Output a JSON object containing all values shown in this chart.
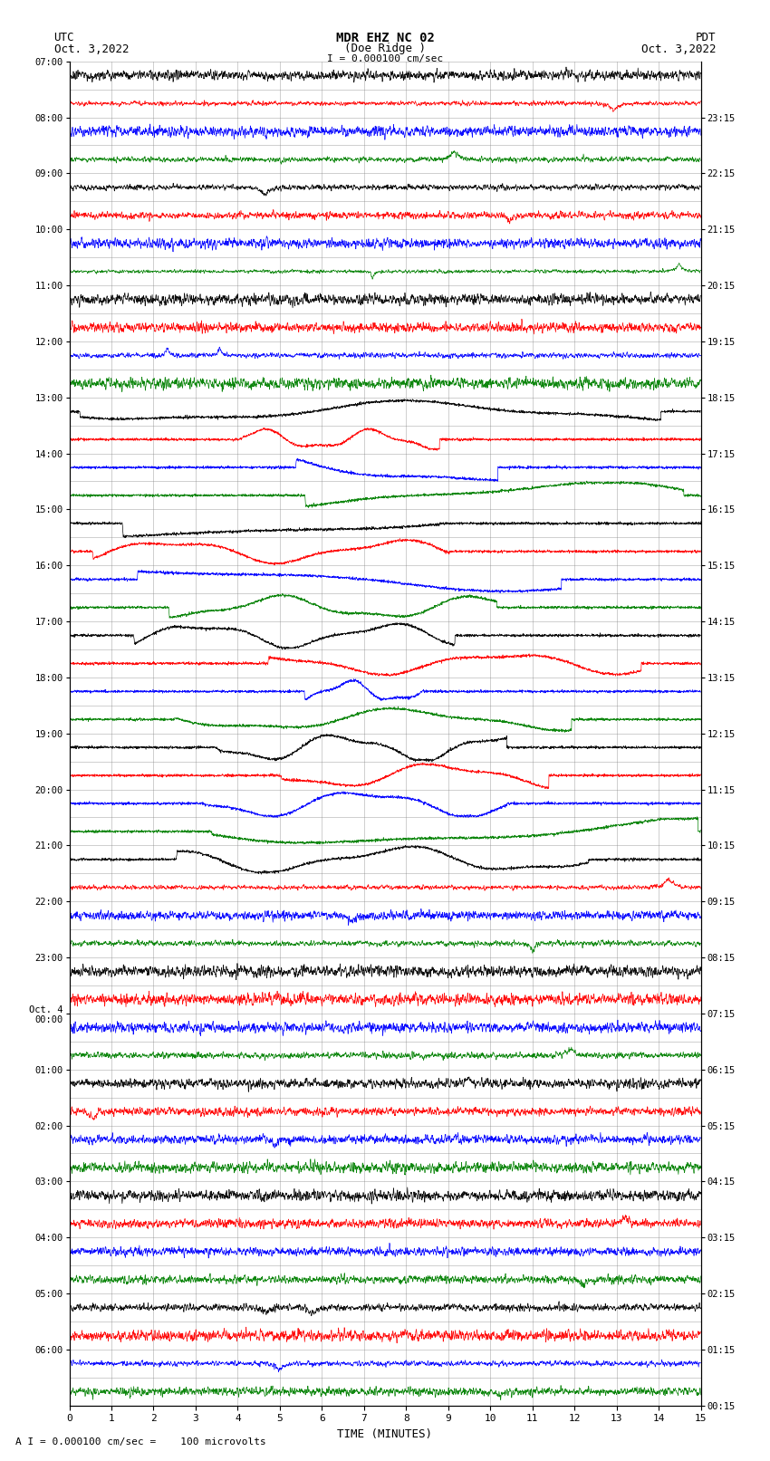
{
  "title_line1": "MDR EHZ NC 02",
  "title_line2": "(Doe Ridge )",
  "scale_label": "I = 0.000100 cm/sec",
  "label_left": "UTC",
  "label_right": "PDT",
  "date_left": "Oct. 3,2022",
  "date_right": "Oct. 3,2022",
  "xlabel": "TIME (MINUTES)",
  "footer_note": "A I = 0.000100 cm/sec =    100 microvolts",
  "xlim": [
    0,
    15
  ],
  "xticks": [
    0,
    1,
    2,
    3,
    4,
    5,
    6,
    7,
    8,
    9,
    10,
    11,
    12,
    13,
    14,
    15
  ],
  "num_rows": 48,
  "bg_color": "#ffffff",
  "grid_color": "#888888",
  "trace_colors": [
    "black",
    "red",
    "blue",
    "green"
  ],
  "utc_labels": [
    "07:00",
    "",
    "08:00",
    "",
    "09:00",
    "",
    "10:00",
    "",
    "11:00",
    "",
    "12:00",
    "",
    "13:00",
    "",
    "14:00",
    "",
    "15:00",
    "",
    "16:00",
    "",
    "17:00",
    "",
    "18:00",
    "",
    "19:00",
    "",
    "20:00",
    "",
    "21:00",
    "",
    "22:00",
    "",
    "23:00",
    "",
    "Oct. 4\n00:00",
    "",
    "01:00",
    "",
    "02:00",
    "",
    "03:00",
    "",
    "04:00",
    "",
    "05:00",
    "",
    "06:00",
    ""
  ],
  "pdt_labels": [
    "00:15",
    "01:15",
    "02:15",
    "03:15",
    "04:15",
    "05:15",
    "06:15",
    "07:15",
    "08:15",
    "09:15",
    "10:15",
    "11:15",
    "12:15",
    "13:15",
    "14:15",
    "15:15",
    "16:15",
    "17:15",
    "18:15",
    "19:15",
    "20:15",
    "21:15",
    "22:15",
    "23:15"
  ]
}
